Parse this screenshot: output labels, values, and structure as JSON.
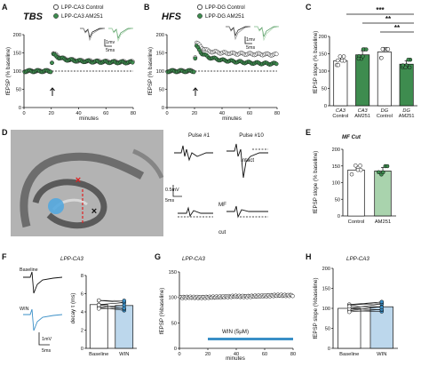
{
  "panels": {
    "A": {
      "letter": "A",
      "title": "TBS",
      "legend": [
        "LPP-CA3 Control",
        "LPP-CA3 AM251"
      ],
      "ylabel": "fEPSP (% baseline)",
      "xlabel": "minutes",
      "yticks": [
        "200",
        "150",
        "100",
        "50",
        "0"
      ],
      "xticks": [
        "0",
        "20",
        "40",
        "60",
        "80"
      ],
      "scalebar": [
        "1mv",
        "5ms"
      ]
    },
    "B": {
      "letter": "B",
      "title": "HFS",
      "legend": [
        "LPP-DG Control",
        "LPP-DG AM251"
      ],
      "ylabel": "fEPSP (% baseline)",
      "xlabel": "minutes",
      "yticks": [
        "200",
        "150",
        "100",
        "50",
        "0"
      ],
      "xticks": [
        "0",
        "20",
        "40",
        "60",
        "80"
      ],
      "scalebar": [
        "1mv",
        "5ms"
      ]
    },
    "C": {
      "letter": "C",
      "ylabel": "fEPSP slope (% baseline)",
      "yticks": [
        "200",
        "150",
        "100",
        "50",
        "0"
      ],
      "categories": [
        {
          "top": "CA3",
          "bottom": "Control"
        },
        {
          "top": "CA3",
          "bottom": "AM251"
        },
        {
          "top": "DG",
          "bottom": "Control"
        },
        {
          "top": "DG",
          "bottom": "AM251"
        }
      ],
      "sig": [
        "***",
        "**",
        "**"
      ]
    },
    "D": {
      "letter": "D",
      "pulse_labels": [
        "Pulse #1",
        "Pulse #10"
      ],
      "row_labels": [
        "Intact",
        "MF cut"
      ],
      "scalebar": [
        "0.5mV",
        "5ms"
      ]
    },
    "E": {
      "letter": "E",
      "title": "MF Cut",
      "ylabel": "fEPSP slope (% baseline)",
      "yticks": [
        "200",
        "150",
        "100",
        "50",
        "0"
      ],
      "categories": [
        "Control",
        "AM251"
      ]
    },
    "F": {
      "letter": "F",
      "title": "LPP-CA3",
      "trace_labels": [
        "Baseline",
        "WIN"
      ],
      "ylabel": "decay τ (ms)",
      "yticks": [
        "8",
        "6",
        "4",
        "2",
        "0"
      ],
      "categories": [
        "Baseline",
        "WIN"
      ],
      "scalebar": [
        "1mV",
        "5ms"
      ]
    },
    "G": {
      "letter": "G",
      "title": "LPP-CA3",
      "ylabel": "fEPSP (%baseline)",
      "xlabel": "minutes",
      "yticks": [
        "150",
        "100",
        "50",
        "0"
      ],
      "xticks": [
        "0",
        "20",
        "40",
        "60",
        "80"
      ],
      "drug": "WIN (5μM)"
    },
    "H": {
      "letter": "H",
      "title": "LPP-CA3",
      "ylabel": "fEPSP slope (%baseline)",
      "yticks": [
        "200",
        "150",
        "100",
        "50",
        "0"
      ],
      "categories": [
        "Baseline",
        "WIN"
      ]
    }
  },
  "colors": {
    "green": "#3e8c4f",
    "light_green": "#a9d3ad",
    "blue": "#3a8fc7",
    "light_blue": "#bcd7ec",
    "ink": "#111111"
  },
  "chart_data": [
    {
      "type": "scatter",
      "panel": "A",
      "xlim": [
        0,
        80
      ],
      "ylim": [
        0,
        200
      ],
      "series": [
        {
          "name": "LPP-CA3 Control",
          "x": [
            0,
            5,
            10,
            15,
            20,
            21,
            25,
            30,
            40,
            50,
            60,
            70,
            80
          ],
          "y": [
            100,
            100,
            100,
            100,
            100,
            150,
            140,
            133,
            128,
            127,
            126,
            125,
            125
          ]
        },
        {
          "name": "LPP-CA3 AM251",
          "x": [
            0,
            5,
            10,
            15,
            20,
            21,
            25,
            30,
            40,
            50,
            60,
            70,
            80
          ],
          "y": [
            100,
            100,
            100,
            100,
            100,
            146,
            138,
            132,
            128,
            126,
            125,
            124,
            124
          ]
        }
      ]
    },
    {
      "type": "scatter",
      "panel": "B",
      "xlim": [
        0,
        80
      ],
      "ylim": [
        0,
        200
      ],
      "series": [
        {
          "name": "LPP-DG Control",
          "x": [
            0,
            5,
            10,
            15,
            20,
            21,
            25,
            30,
            40,
            50,
            60,
            70,
            80
          ],
          "y": [
            100,
            100,
            100,
            100,
            100,
            180,
            165,
            155,
            150,
            148,
            147,
            146,
            145
          ]
        },
        {
          "name": "LPP-DG AM251",
          "x": [
            0,
            5,
            10,
            15,
            20,
            21,
            25,
            30,
            40,
            50,
            60,
            70,
            80
          ],
          "y": [
            100,
            100,
            100,
            100,
            100,
            170,
            150,
            138,
            130,
            126,
            123,
            121,
            120
          ]
        }
      ]
    },
    {
      "type": "bar",
      "panel": "C",
      "ylim": [
        0,
        200
      ],
      "categories": [
        "CA3 Control",
        "CA3 AM251",
        "DG Control",
        "DG AM251"
      ],
      "values": [
        130,
        147,
        155,
        120
      ]
    },
    {
      "type": "bar",
      "panel": "E",
      "ylim": [
        0,
        200
      ],
      "categories": [
        "Control",
        "AM251"
      ],
      "values": [
        138,
        135
      ]
    },
    {
      "type": "bar",
      "panel": "F",
      "ylim": [
        0,
        8
      ],
      "categories": [
        "Baseline",
        "WIN"
      ],
      "values": [
        4.8,
        4.7
      ]
    },
    {
      "type": "scatter",
      "panel": "G",
      "xlim": [
        0,
        80
      ],
      "ylim": [
        0,
        150
      ],
      "series": [
        {
          "name": "",
          "x": [
            0,
            10,
            20,
            30,
            40,
            50,
            60,
            70,
            80
          ],
          "y": [
            100,
            100,
            100,
            101,
            102,
            102,
            103,
            104,
            104
          ]
        }
      ]
    },
    {
      "type": "bar",
      "panel": "H",
      "ylim": [
        0,
        200
      ],
      "categories": [
        "Baseline",
        "WIN"
      ],
      "values": [
        100,
        104
      ]
    }
  ]
}
